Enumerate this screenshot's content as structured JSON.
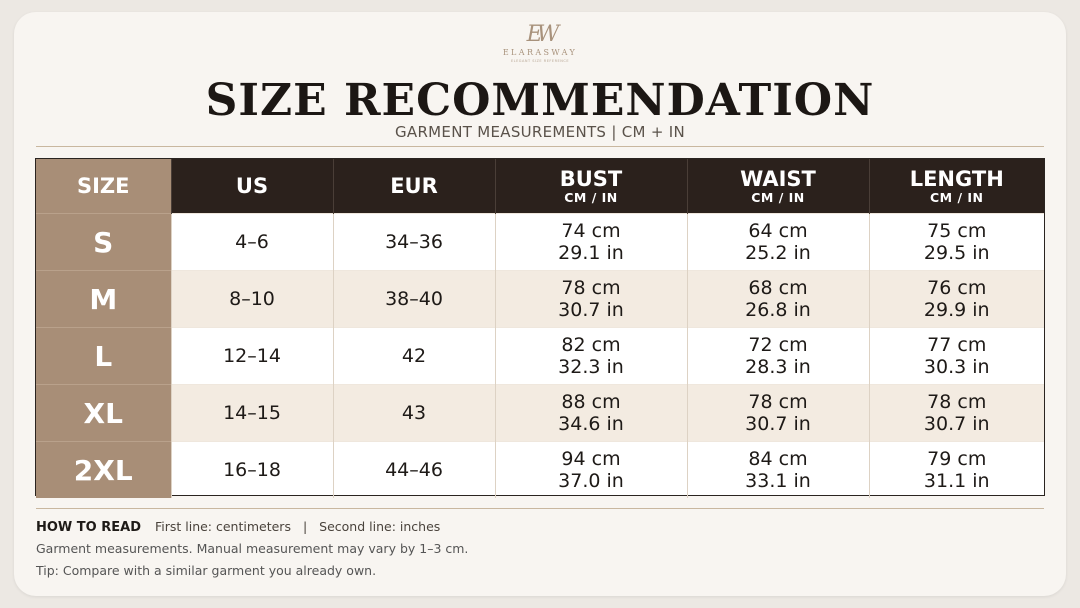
{
  "brand": {
    "monogram": "EW",
    "name": "ELARASWAY",
    "tagline": "ELEGANT SIZE REFERENCE"
  },
  "title": "SIZE RECOMMENDATION",
  "subtitle": "GARMENT MEASUREMENTS  |  CM + IN",
  "table": {
    "headers": [
      {
        "label": "SIZE",
        "unit": ""
      },
      {
        "label": "US",
        "unit": ""
      },
      {
        "label": "EUR",
        "unit": ""
      },
      {
        "label": "BUST",
        "unit": "CM / IN"
      },
      {
        "label": "WAIST",
        "unit": "CM / IN"
      },
      {
        "label": "LENGTH",
        "unit": "CM / IN"
      }
    ],
    "rows": [
      {
        "size": "S",
        "us": "4–6",
        "eur": "34–36",
        "bust": {
          "cm": "74 cm",
          "in": "29.1 in"
        },
        "waist": {
          "cm": "64 cm",
          "in": "25.2 in"
        },
        "length": {
          "cm": "75 cm",
          "in": "29.5 in"
        }
      },
      {
        "size": "M",
        "us": "8–10",
        "eur": "38–40",
        "bust": {
          "cm": "78 cm",
          "in": "30.7 in"
        },
        "waist": {
          "cm": "68 cm",
          "in": "26.8 in"
        },
        "length": {
          "cm": "76 cm",
          "in": "29.9 in"
        }
      },
      {
        "size": "L",
        "us": "12–14",
        "eur": "42",
        "bust": {
          "cm": "82 cm",
          "in": "32.3 in"
        },
        "waist": {
          "cm": "72 cm",
          "in": "28.3 in"
        },
        "length": {
          "cm": "77 cm",
          "in": "30.3 in"
        }
      },
      {
        "size": "XL",
        "us": "14–15",
        "eur": "43",
        "bust": {
          "cm": "88 cm",
          "in": "34.6 in"
        },
        "waist": {
          "cm": "78 cm",
          "in": "30.7 in"
        },
        "length": {
          "cm": "78 cm",
          "in": "30.7 in"
        }
      },
      {
        "size": "2XL",
        "us": "16–18",
        "eur": "44–46",
        "bust": {
          "cm": "94 cm",
          "in": "37.0 in"
        },
        "waist": {
          "cm": "84 cm",
          "in": "33.1 in"
        },
        "length": {
          "cm": "79 cm",
          "in": "31.1 in"
        }
      }
    ]
  },
  "notes": {
    "how_label": "HOW TO READ",
    "first_line": "First line: centimeters",
    "separator": "|",
    "second_line": "Second line: inches",
    "disclaimer": "Garment measurements. Manual measurement may vary by 1–3 cm.",
    "tip": "Tip: Compare with a similar garment you already own."
  },
  "colors": {
    "header_dark": "#2b211c",
    "size_column": "#a88e77",
    "alt_row": "#f3ebe1",
    "accent_rule": "#c9b79f"
  }
}
